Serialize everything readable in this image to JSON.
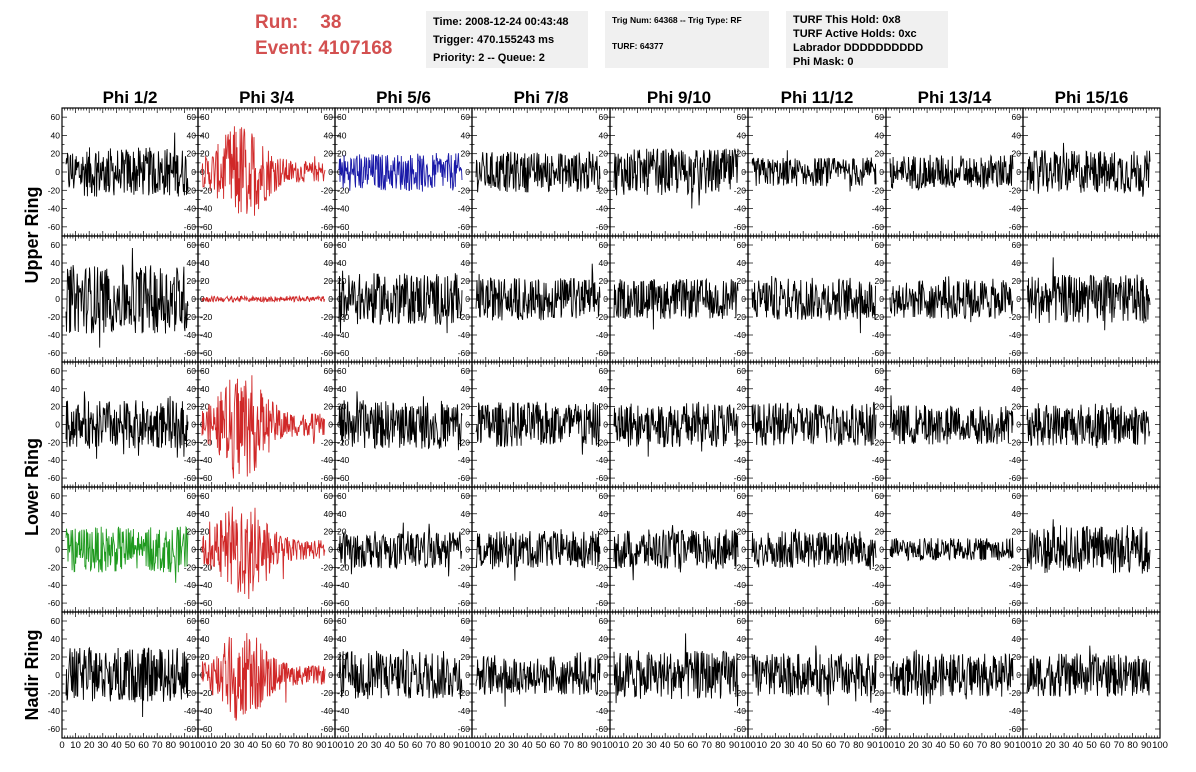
{
  "header": {
    "run_label": "Run:",
    "run_value": "38",
    "event_label": "Event:",
    "event_value": "4107168",
    "box1": [
      "Time: 2008-12-24 00:43:48",
      "Trigger: 470.155243 ms",
      "Priority: 2 -- Queue: 2"
    ],
    "box2_line1": "Trig Num: 64368 -- Trig Type: RF",
    "box2_line2": "TURF: 64377",
    "box3": [
      "TURF This Hold: 0x8",
      "TURF Active Holds: 0xc",
      "Labrador DDDDDDDDDD",
      "Phi Mask: 0"
    ]
  },
  "chart_data": {
    "type": "line",
    "columns": [
      "Phi 1/2",
      "Phi 3/4",
      "Phi 5/6",
      "Phi 7/8",
      "Phi 9/10",
      "Phi 11/12",
      "Phi 13/14",
      "Phi 15/16"
    ],
    "rows": [
      "Upper Ring",
      "Upper Ring",
      "Lower Ring",
      "Lower Ring",
      "Nadir Ring"
    ],
    "row_labels": [
      {
        "text": "Upper Ring",
        "spans_rows": [
          0,
          1
        ]
      },
      {
        "text": "Lower Ring",
        "spans_rows": [
          2,
          3
        ]
      },
      {
        "text": "Nadir Ring",
        "spans_rows": [
          4,
          4
        ]
      }
    ],
    "xlim": [
      0,
      100
    ],
    "ylim": [
      -70,
      70
    ],
    "y_ticks": [
      -60,
      -40,
      -20,
      0,
      20,
      40,
      60
    ],
    "x_tick_labels": [
      "0",
      "10",
      "20",
      "30",
      "40",
      "50",
      "60",
      "70",
      "80",
      "90",
      "100"
    ],
    "colors": {
      "normal": "#000000",
      "red": "#d02828",
      "blue": "#1a1aa8",
      "green": "#1f9a1f"
    },
    "panels": [
      [
        {
          "c": "normal",
          "amp": 17
        },
        {
          "c": "red",
          "amp": 20
        },
        {
          "c": "blue",
          "amp": 13
        },
        {
          "c": "normal",
          "amp": 14
        },
        {
          "c": "normal",
          "amp": 16
        },
        {
          "c": "normal",
          "amp": 10
        },
        {
          "c": "normal",
          "amp": 12
        },
        {
          "c": "normal",
          "amp": 15
        }
      ],
      [
        {
          "c": "normal",
          "amp": 24
        },
        {
          "c": "red",
          "amp": 2
        },
        {
          "c": "normal",
          "amp": 18
        },
        {
          "c": "normal",
          "amp": 15
        },
        {
          "c": "normal",
          "amp": 14
        },
        {
          "c": "normal",
          "amp": 15
        },
        {
          "c": "normal",
          "amp": 14
        },
        {
          "c": "normal",
          "amp": 17
        }
      ],
      [
        {
          "c": "normal",
          "amp": 17
        },
        {
          "c": "red",
          "amp": 22
        },
        {
          "c": "normal",
          "amp": 17
        },
        {
          "c": "normal",
          "amp": 16
        },
        {
          "c": "normal",
          "amp": 16
        },
        {
          "c": "normal",
          "amp": 15
        },
        {
          "c": "normal",
          "amp": 14
        },
        {
          "c": "normal",
          "amp": 15
        }
      ],
      [
        {
          "c": "green",
          "amp": 16
        },
        {
          "c": "red",
          "amp": 20
        },
        {
          "c": "normal",
          "amp": 13
        },
        {
          "c": "normal",
          "amp": 13
        },
        {
          "c": "normal",
          "amp": 14
        },
        {
          "c": "normal",
          "amp": 13
        },
        {
          "c": "normal",
          "amp": 8
        },
        {
          "c": "normal",
          "amp": 17
        }
      ],
      [
        {
          "c": "normal",
          "amp": 19
        },
        {
          "c": "red",
          "amp": 19
        },
        {
          "c": "normal",
          "amp": 17
        },
        {
          "c": "normal",
          "amp": 14
        },
        {
          "c": "normal",
          "amp": 17
        },
        {
          "c": "normal",
          "amp": 15
        },
        {
          "c": "normal",
          "amp": 15
        },
        {
          "c": "normal",
          "amp": 15
        }
      ]
    ]
  }
}
